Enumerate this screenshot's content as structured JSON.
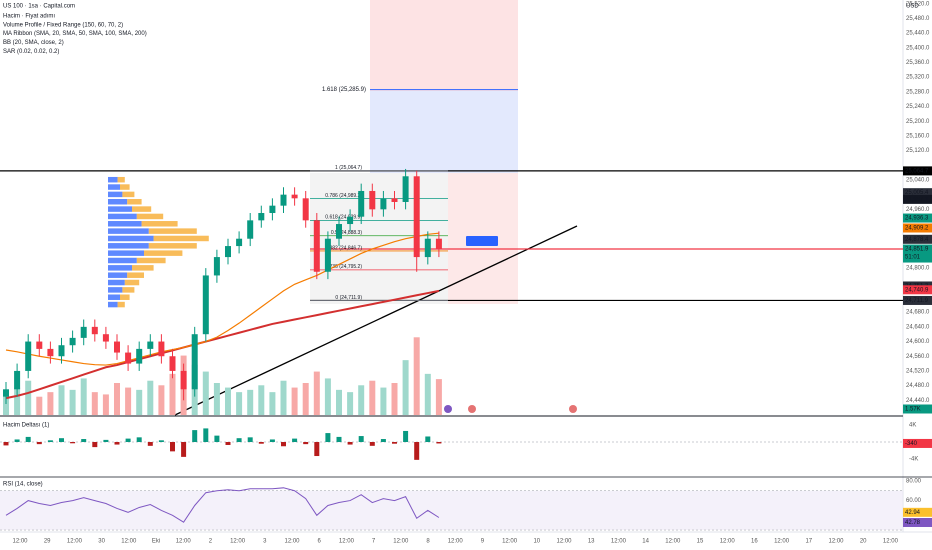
{
  "chart_data": [
    {
      "type": "candlestick",
      "title": "US 100 · 1sa · Capital.com",
      "legend_lines": [
        "Hacim · Fiyat adımı",
        "Volume Profile / Fixed Range (150, 60, 70, 2)",
        "MA Ribbon (SMA, 20, SMA, 50, SMA, 100, SMA, 200)",
        "BB (20, SMA, close, 2)",
        "SAR (0.02, 0.02, 0.2)"
      ],
      "unit": "USD",
      "ylim": [
        24400,
        25530
      ],
      "yticks": [
        {
          "value": 24440,
          "label": "24,440.0"
        },
        {
          "value": 24480,
          "label": "24,480.0"
        },
        {
          "value": 24520,
          "label": "24,520.0"
        },
        {
          "value": 24560,
          "label": "24,560.0"
        },
        {
          "value": 24600,
          "label": "24,600.0"
        },
        {
          "value": 24640,
          "label": "24,640.0"
        },
        {
          "value": 24680,
          "label": "24,680.0"
        },
        {
          "value": 24800,
          "label": "24,800.0"
        },
        {
          "value": 24960,
          "label": "24,960.0"
        },
        {
          "value": 25040,
          "label": "25,040.0"
        },
        {
          "value": 25120,
          "label": "25,120.0"
        },
        {
          "value": 25160,
          "label": "25,160.0"
        },
        {
          "value": 25200,
          "label": "25,200.0"
        },
        {
          "value": 25240,
          "label": "25,240.0"
        },
        {
          "value": 25280,
          "label": "25,280.0"
        },
        {
          "value": 25320,
          "label": "25,320.0"
        },
        {
          "value": 25360,
          "label": "25,360.0"
        },
        {
          "value": 25400,
          "label": "25,400.0"
        },
        {
          "value": 25440,
          "label": "25,440.0"
        },
        {
          "value": 25480,
          "label": "25,480.0"
        },
        {
          "value": 25520,
          "label": "25,520.0"
        }
      ],
      "up_color": "#089981",
      "down_color": "#f23645",
      "open": [
        24450,
        24470,
        24520,
        24600,
        24580,
        24560,
        24590,
        24610,
        24640,
        24620,
        24600,
        24570,
        24540,
        24580,
        24600,
        24560,
        24520,
        24470,
        24620,
        24780,
        24830,
        24860,
        24880,
        24930,
        24950,
        24970,
        25000,
        24990,
        24930,
        24790,
        24880,
        24920,
        24940,
        25010,
        24960,
        24990,
        24980,
        25050,
        24830,
        24880
      ],
      "high": [
        24490,
        24540,
        24620,
        24620,
        24600,
        24610,
        24630,
        24660,
        24660,
        24640,
        24620,
        24590,
        24600,
        24620,
        24620,
        24580,
        24540,
        24640,
        24800,
        24850,
        24880,
        24900,
        24950,
        24970,
        24990,
        25020,
        25020,
        25010,
        24950,
        24900,
        24940,
        24960,
        25030,
        25030,
        25010,
        25010,
        25070,
        25065,
        24900,
        24900
      ],
      "low": [
        24430,
        24450,
        24500,
        24560,
        24540,
        24540,
        24570,
        24590,
        24600,
        24580,
        24550,
        24520,
        24520,
        24560,
        24540,
        24500,
        24440,
        24450,
        24600,
        24760,
        24810,
        24840,
        24860,
        24910,
        24930,
        24950,
        24970,
        24910,
        24770,
        24770,
        24860,
        24900,
        24920,
        24940,
        24940,
        24960,
        24960,
        24790,
        24810,
        24830
      ],
      "close": [
        24470,
        24520,
        24600,
        24580,
        24560,
        24590,
        24610,
        24640,
        24620,
        24600,
        24570,
        24540,
        24580,
        24600,
        24560,
        24520,
        24470,
        24620,
        24780,
        24830,
        24860,
        24880,
        24930,
        24950,
        24970,
        25000,
        24990,
        24930,
        24790,
        24880,
        24920,
        24940,
        25010,
        24960,
        24990,
        24980,
        25050,
        24830,
        24880,
        24852
      ],
      "ma_lines": [
        {
          "color": "#d32f2f",
          "values": [
            24446,
            24452,
            24460,
            24470,
            24480,
            24490,
            24500,
            24510,
            24520,
            24530,
            24536,
            24544,
            24552,
            24560,
            24568,
            24576,
            24584,
            24592,
            24600,
            24608,
            24616,
            24624,
            24632,
            24640,
            24648,
            24654,
            24660,
            24666,
            24672,
            24678,
            24684,
            24690,
            24696,
            24702,
            24708,
            24714,
            24720,
            24726,
            24732,
            24738
          ]
        },
        {
          "color": "#f57c00",
          "values": [
            24577,
            24572,
            24566,
            24560,
            24555,
            24550,
            24545,
            24540,
            24537,
            24536,
            24540,
            24548,
            24556,
            24564,
            24572,
            24578,
            24584,
            24592,
            24600,
            24612,
            24630,
            24650,
            24672,
            24694,
            24716,
            24738,
            24756,
            24768,
            24780,
            24795,
            24810,
            24825,
            24840,
            24852,
            24862,
            24872,
            24880,
            24886,
            24892,
            24895
          ]
        }
      ],
      "volume": [
        0.9,
        1.2,
        1.5,
        0.8,
        1.0,
        1.3,
        1.1,
        1.6,
        1.0,
        0.9,
        1.4,
        1.2,
        1.1,
        1.5,
        1.3,
        1.8,
        2.6,
        2.2,
        1.9,
        1.4,
        1.2,
        1.0,
        1.1,
        1.3,
        1.0,
        1.5,
        1.2,
        1.4,
        1.9,
        1.6,
        1.1,
        1.0,
        1.3,
        1.5,
        1.2,
        1.4,
        2.4,
        3.4,
        1.8,
        1.57
      ],
      "volume_badge": {
        "value": 1.57,
        "label": "1.57K",
        "color": "#089981"
      },
      "volume_profile": {
        "levels": [
          24700,
          24720,
          24740,
          24760,
          24780,
          24800,
          24820,
          24840,
          24860,
          24880,
          24900,
          24920,
          24940,
          24960,
          24980,
          25000,
          25020,
          25040
        ],
        "up": [
          8,
          10,
          12,
          14,
          16,
          20,
          24,
          30,
          34,
          38,
          34,
          28,
          24,
          20,
          16,
          12,
          10,
          8
        ],
        "down": [
          6,
          8,
          10,
          12,
          14,
          18,
          24,
          32,
          40,
          46,
          40,
          30,
          22,
          16,
          12,
          10,
          8,
          6
        ],
        "up_color": "#2962ff",
        "down_color": "#f5a623"
      },
      "levels": [
        {
          "value": 25064.7,
          "color": "#000000"
        },
        {
          "value": 24851.9,
          "color": "#f23645"
        },
        {
          "value": 24711.9,
          "color": "#000000"
        }
      ],
      "fib_extension": {
        "value": 25285.9,
        "label": "1.618 (25,285.9)",
        "color": "#2962ff"
      },
      "fib_levels": [
        {
          "value": 25064.7,
          "label": "1 (25,064.7)",
          "color": "#787b86"
        },
        {
          "value": 24989.2,
          "label": "0.786 (24,989.2)",
          "color": "#089981"
        },
        {
          "value": 24929.9,
          "label": "0.618 (24,929.9)",
          "color": "#089981"
        },
        {
          "value": 24888.3,
          "label": "0.5 (24,888.3)",
          "color": "#4caf50"
        },
        {
          "value": 24846.7,
          "label": "0.382 (24,846.7)",
          "color": "#f57c00"
        },
        {
          "value": 24795.2,
          "label": "0.236 (24,795.2)",
          "color": "#f23645"
        },
        {
          "value": 24711.9,
          "label": "0 (24,711.9)",
          "color": "#787b86"
        }
      ],
      "price_badges": [
        {
          "value": 25064.7,
          "label": "25,064.7",
          "color": "#000000"
        },
        {
          "value": 25005.4,
          "label": "25,005.4",
          "color": "#2a2e39"
        },
        {
          "value": 24987.1,
          "label": "24,987.1",
          "color": "#131722"
        },
        {
          "value": 24936.3,
          "label": "24,936.3",
          "color": "#089981"
        },
        {
          "value": 24909.2,
          "label": "24,909.2",
          "color": "#f57c00"
        },
        {
          "value": 24878.4,
          "label": "24,878.4",
          "color": "#2a2e39"
        },
        {
          "value": 24851.9,
          "label": "24,851.9",
          "color": "#089981",
          "countdown": "51:01"
        },
        {
          "value": 24751.3,
          "label": "24,751.3",
          "color": "#2a2e39"
        },
        {
          "value": 24740.9,
          "label": "24,740.9",
          "color": "#f23645"
        },
        {
          "value": 24711.9,
          "label": "24,711.9",
          "color": "#2a2e39"
        }
      ],
      "x_labels": [
        "12:00",
        "29",
        "12:00",
        "30",
        "12:00",
        "Eki",
        "12:00",
        "2",
        "12:00",
        "3",
        "12:00",
        "6",
        "12:00",
        "7",
        "12:00",
        "8",
        "12:00",
        "9",
        "12:00",
        "10",
        "12:00",
        "13",
        "12:00",
        "14",
        "12:00",
        "15",
        "12:00",
        "16",
        "12:00",
        "17",
        "12:00",
        "20",
        "12:00"
      ]
    },
    {
      "type": "bar",
      "title": "Hacim Deltası (1)",
      "ylim": [
        -8000,
        5650
      ],
      "yticks": [
        {
          "value": 4000,
          "label": "4K"
        },
        {
          "value": -4000,
          "label": "-4K"
        }
      ],
      "up_color": "#089981",
      "down_color": "#b71c1c",
      "values": [
        -800,
        600,
        1200,
        -500,
        400,
        900,
        -300,
        700,
        -1200,
        500,
        -600,
        800,
        1100,
        -900,
        400,
        -2200,
        -3500,
        2800,
        3200,
        1500,
        -700,
        900,
        1100,
        -400,
        600,
        -1000,
        800,
        -500,
        -3300,
        2100,
        1200,
        -600,
        1400,
        -900,
        700,
        -400,
        2600,
        -4200,
        1300,
        -340
      ],
      "badge": {
        "value": -340,
        "label": "-340",
        "color": "#f23645"
      }
    },
    {
      "type": "line",
      "title": "RSI (14, close)",
      "ylim": [
        28,
        83
      ],
      "yticks": [
        {
          "value": 80,
          "label": "80.00"
        },
        {
          "value": 60,
          "label": "60.00"
        }
      ],
      "band": [
        30,
        70
      ],
      "color": "#7e57c2",
      "values": [
        45,
        52,
        60,
        57,
        55,
        58,
        60,
        63,
        60,
        57,
        52,
        48,
        53,
        56,
        50,
        45,
        38,
        55,
        68,
        70,
        71,
        70,
        72,
        72,
        72,
        73,
        70,
        62,
        45,
        55,
        58,
        60,
        66,
        58,
        62,
        60,
        64,
        42,
        50,
        42.78
      ],
      "badges": [
        {
          "value": 42.94,
          "label": "42.94",
          "color": "#fbc02d"
        },
        {
          "value": 42.78,
          "label": "42.78",
          "color": "#7e57c2"
        }
      ]
    }
  ]
}
